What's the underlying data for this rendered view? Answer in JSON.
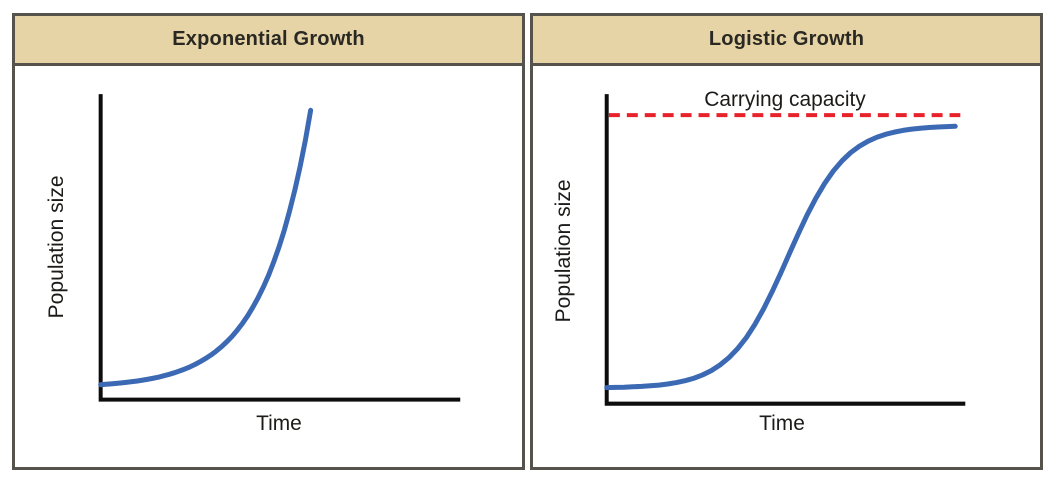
{
  "figure": {
    "type": "two-panel population growth comparison figure",
    "theme": {
      "background": "#ffffff",
      "header_bg": "#e6d4a6",
      "panel_border": "#56534c",
      "curve_color": "#3c69b3",
      "carrying_capacity_color": "#e8222b",
      "axis_color": "#0d0d0d",
      "label_color": "#1c1b19"
    }
  },
  "chart_data": [
    {
      "id": "exponential-growth",
      "type": "line",
      "title": "Exponential Growth",
      "xlabel": "Time",
      "ylabel": "Population size",
      "x_ticks": [],
      "y_ticks": [],
      "legend": "none",
      "grid": false,
      "axis_note": "conceptual axes with no numeric scale; x and y are fractions of the plot area (x: 0=origin, 1=right end of x-axis; y: 0=x-axis, 1=top of y-axis)",
      "series": [
        {
          "name": "population",
          "shape": "J-shaped exponential increase",
          "color": "#3c69b3",
          "x": [
            0,
            0.0146,
            0.0292,
            0.0438,
            0.0584,
            0.073,
            0.0876,
            0.1022,
            0.1168,
            0.1314,
            0.146,
            0.1606,
            0.1752,
            0.1898,
            0.2044,
            0.219,
            0.2336,
            0.2482,
            0.2628,
            0.2774,
            0.292,
            0.3066,
            0.3212,
            0.3358,
            0.3504,
            0.365,
            0.3796,
            0.3942,
            0.4088,
            0.4234,
            0.438,
            0.4526,
            0.4672,
            0.4818,
            0.4964,
            0.511,
            0.5256,
            0.5402,
            0.5548,
            0.5694,
            0.584
          ],
          "y": [
            0.049,
            0.0502,
            0.0515,
            0.053,
            0.0547,
            0.0566,
            0.0587,
            0.061,
            0.0637,
            0.0666,
            0.0699,
            0.0736,
            0.0777,
            0.0823,
            0.0875,
            0.0933,
            0.0997,
            0.107,
            0.1151,
            0.1242,
            0.1344,
            0.1457,
            0.1584,
            0.1726,
            0.1885,
            0.2063,
            0.2263,
            0.2486,
            0.2736,
            0.3015,
            0.3327,
            0.3678,
            0.4069,
            0.4507,
            0.4997,
            0.5545,
            0.616,
            0.6847,
            0.7614,
            0.8474,
            0.944
          ]
        }
      ]
    },
    {
      "id": "logistic-growth",
      "type": "line",
      "title": "Logistic Growth",
      "xlabel": "Time",
      "ylabel": "Population size",
      "x_ticks": [],
      "y_ticks": [],
      "legend": "none",
      "grid": false,
      "axis_note": "conceptual axes with no numeric scale; x and y are fractions of the plot area",
      "series": [
        {
          "name": "population",
          "shape": "S-shaped (sigmoid) curve levelling off at carrying capacity",
          "color": "#3c69b3",
          "x": [
            0,
            0.0243,
            0.0486,
            0.0729,
            0.0972,
            0.1215,
            0.1458,
            0.1701,
            0.1944,
            0.2187,
            0.243,
            0.2673,
            0.2916,
            0.3159,
            0.3402,
            0.3645,
            0.3888,
            0.4131,
            0.4374,
            0.4617,
            0.486,
            0.5103,
            0.5346,
            0.5589,
            0.5832,
            0.6075,
            0.6318,
            0.6561,
            0.6804,
            0.7047,
            0.729,
            0.7533,
            0.7776,
            0.8019,
            0.8262,
            0.8505,
            0.8748,
            0.8991,
            0.9234,
            0.9477,
            0.972
          ],
          "y": [
            0.052,
            0.0526,
            0.0534,
            0.0544,
            0.0558,
            0.0577,
            0.0602,
            0.0636,
            0.0682,
            0.0743,
            0.0823,
            0.0929,
            0.1069,
            0.1249,
            0.148,
            0.177,
            0.2128,
            0.2559,
            0.3062,
            0.3627,
            0.4239,
            0.4872,
            0.5501,
            0.6096,
            0.6638,
            0.7112,
            0.7514,
            0.7844,
            0.811,
            0.8319,
            0.8482,
            0.8607,
            0.8702,
            0.8774,
            0.8828,
            0.8869,
            0.8899,
            0.8922,
            0.8938,
            0.8951,
            0.896
          ]
        }
      ],
      "annotations": [
        {
          "type": "hline",
          "label": "Carrying capacity",
          "color": "#e8222b",
          "line_style": "dashed",
          "y_frac": 0.932,
          "x_start_frac": 0.006,
          "x_end_frac": 0.986
        }
      ]
    }
  ]
}
